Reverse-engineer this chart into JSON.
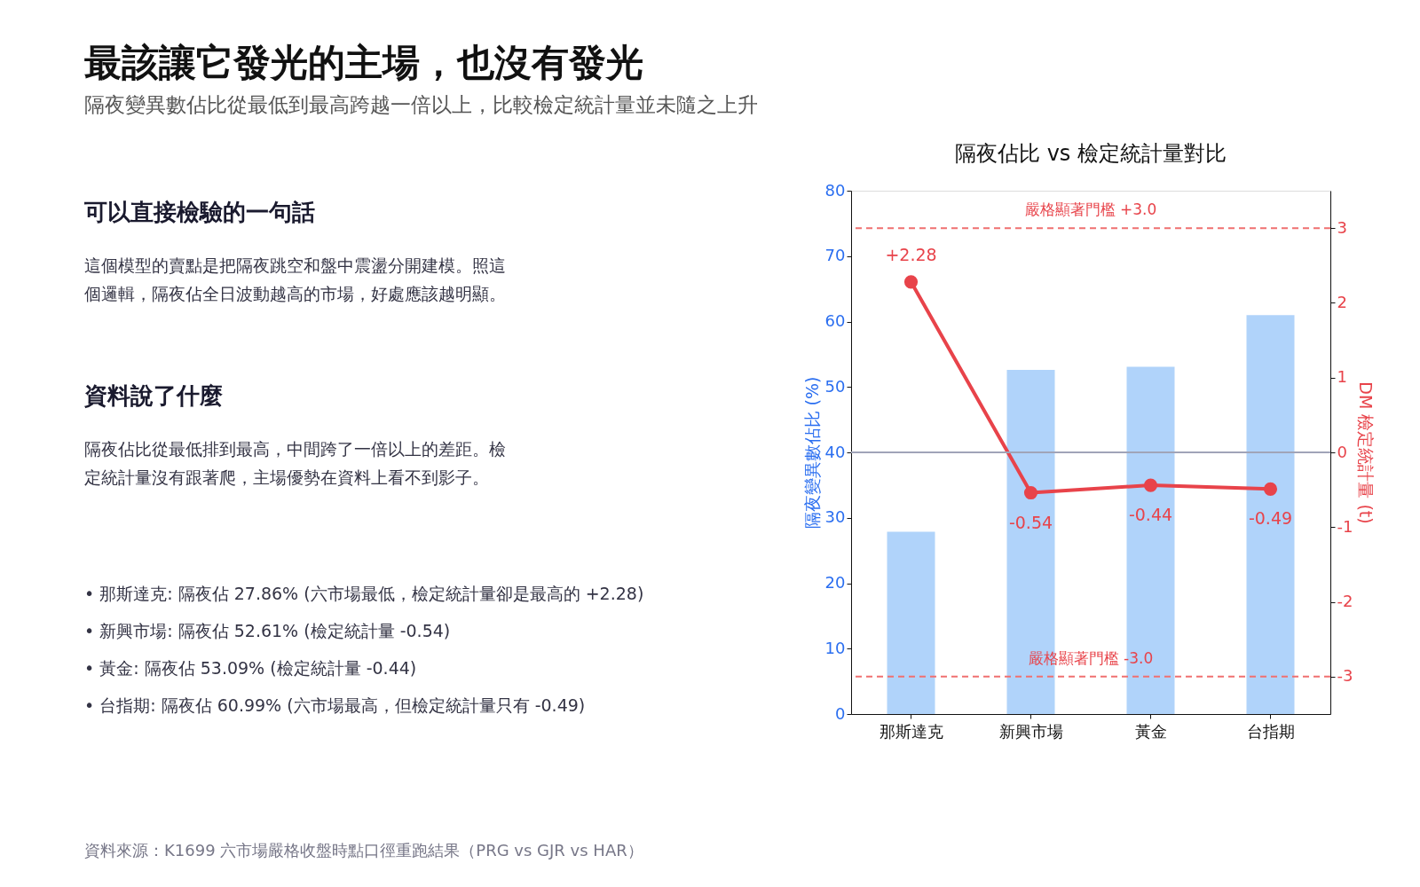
{
  "chart_data": [
    {
      "type": "other",
      "title": "最該讓它發光的主場，也沒有發光",
      "subtitle": "隔夜變異數佔比從最低到最高跨越一倍以上，比較檢定統計量並未隨之上升",
      "annotations": [
        "可以直接檢驗的一句話",
        "這個模型的賣點是把隔夜跳空和盤中震盪分開建模。照這",
        "個邏輯，隔夜佔全日波動越高的市場，好處應該越明顯。",
        "資料說了什麼",
        "隔夜佔比從最低排到最高，中間跨了一倍以上的差距。檢",
        "定統計量沒有跟著爬，主場優勢在資料上看不到影子。",
        "• 那斯達克: 隔夜佔 27.86% (六市場最低，檢定統計量卻是最高的 +2.28)",
        "• 新興市場: 隔夜佔 52.61% (檢定統計量 -0.54)",
        "• 黃金: 隔夜佔 53.09% (檢定統計量 -0.44)",
        "• 台指期: 隔夜佔 60.99% (六市場最高，但檢定統計量只有 -0.49)",
        "資料來源：K1699 六市場嚴格收盤時點口徑重跑結果（PRG vs GJR vs HAR）"
      ]
    },
    {
      "type": "bar",
      "title": "隔夜佔比 vs 檢定統計量對比",
      "ylabel": "隔夜變異數佔比 (%)",
      "y2label": "DM 檢定統計量 (t)",
      "categories": [
        "那斯達克",
        "新興市場",
        "黃金",
        "台指期"
      ],
      "series": [
        {
          "color": "#b0d3fa",
          "values": [
            27.86,
            52.61,
            53.09,
            60.99
          ]
        },
        {
          "type": "line",
          "axis": "y2",
          "color": "#e8434a",
          "values": [
            2.28,
            -0.54,
            -0.44,
            -0.49
          ],
          "value_labels": [
            "+2.28",
            "-0.54",
            "-0.44",
            "-0.49"
          ]
        }
      ],
      "ylim": [
        0,
        80
      ],
      "yticks": [
        0,
        10,
        20,
        30,
        40,
        50,
        60,
        70,
        80
      ],
      "y2lim": [
        -3.5,
        3.5
      ],
      "y2ticks": [
        -3,
        -2,
        -1,
        0,
        1,
        2,
        3
      ],
      "ref_lines": [
        {
          "axis": "y2",
          "value": 3.0,
          "label": "嚴格顯著門檻 +3.0",
          "color": "#f07070",
          "line_style": "dashed"
        },
        {
          "axis": "y2",
          "value": -3.0,
          "label": "嚴格顯著門檻 -3.0",
          "color": "#f07070",
          "line_style": "dashed"
        },
        {
          "axis": "y2",
          "value": 0,
          "color": "#a0a4b8",
          "line_style": "solid"
        }
      ],
      "marker": "circle",
      "grid": false
    }
  ]
}
